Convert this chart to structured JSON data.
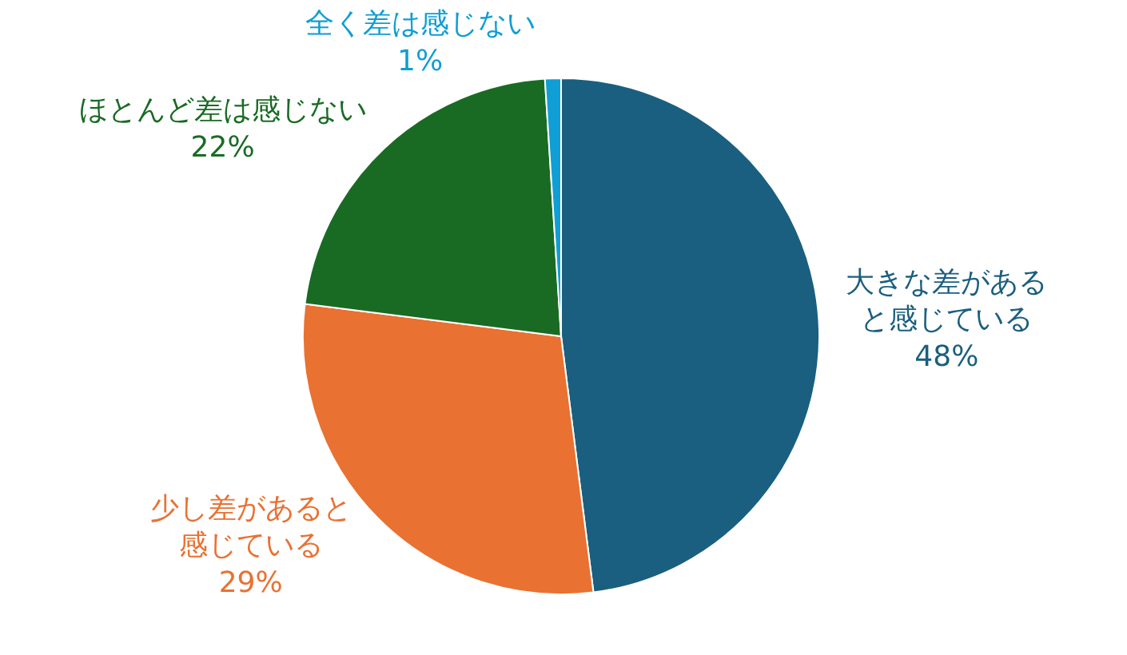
{
  "chart_data": {
    "type": "pie",
    "categories": [
      "大きな差があると感じている",
      "少し差があると感じている",
      "ほとんど差は感じない",
      "全く差は感じない"
    ],
    "values": [
      48,
      29,
      22,
      1
    ],
    "colors": [
      "#1a5f7f",
      "#e97132",
      "#196b24",
      "#0f9ed5"
    ],
    "value_labels": [
      "48%",
      "29%",
      "22%",
      "1%"
    ],
    "legend": false
  }
}
